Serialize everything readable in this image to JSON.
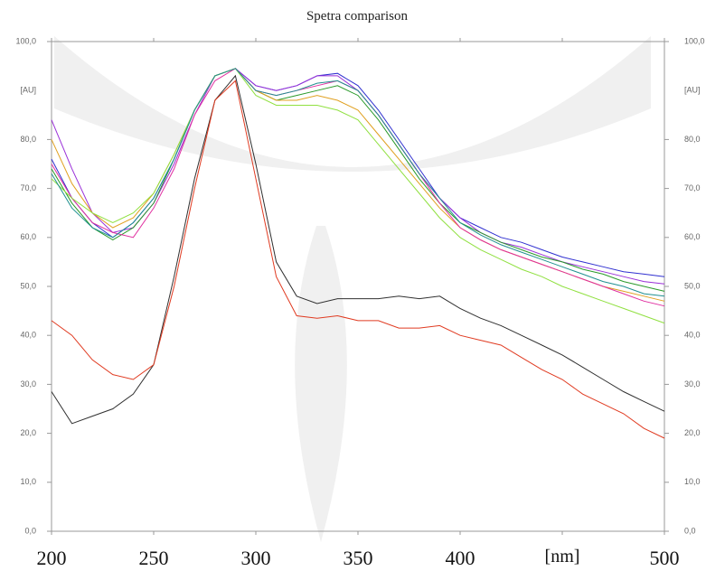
{
  "chart_data": {
    "type": "line",
    "title": "Spetra comparison",
    "y_label": "[AU]",
    "x_label": "[nm]",
    "x": [
      200,
      210,
      220,
      230,
      240,
      250,
      260,
      270,
      280,
      290,
      300,
      310,
      320,
      330,
      340,
      350,
      360,
      370,
      380,
      390,
      400,
      410,
      420,
      430,
      440,
      450,
      460,
      470,
      480,
      490,
      500
    ],
    "xlim": [
      200,
      500
    ],
    "xticks": [
      200,
      250,
      300,
      350,
      400,
      450,
      500
    ],
    "ylim": [
      0,
      100
    ],
    "yticks": [
      {
        "value": 0,
        "label": "0,0"
      },
      {
        "value": 10,
        "label": "10,0"
      },
      {
        "value": 20,
        "label": "20,0"
      },
      {
        "value": 30,
        "label": "30,0"
      },
      {
        "value": 40,
        "label": "40,0"
      },
      {
        "value": 50,
        "label": "50,0"
      },
      {
        "value": 60,
        "label": "60,0"
      },
      {
        "value": 70,
        "label": "70,0"
      },
      {
        "value": 80,
        "label": "80,0"
      },
      {
        "value": 100,
        "label": "100,0"
      }
    ],
    "series": [
      {
        "color": "#3030d0",
        "values": [
          76,
          68,
          63,
          60,
          63,
          68,
          76,
          86,
          93,
          94.5,
          91,
          90,
          91,
          93,
          93.5,
          91,
          86,
          80,
          74,
          68,
          64,
          62,
          60,
          59,
          57.5,
          56,
          55,
          54,
          53,
          52.5,
          52
        ]
      },
      {
        "color": "#9a30d8",
        "values": [
          84,
          74,
          65,
          61,
          62,
          67,
          75,
          85,
          93,
          94.5,
          91,
          90,
          91,
          93,
          93,
          90,
          85,
          79,
          73,
          68,
          64,
          61,
          59,
          58,
          56.5,
          55,
          54,
          53,
          52,
          51,
          50.5
        ]
      },
      {
        "color": "#2a9a2a",
        "values": [
          74,
          67,
          62,
          59.5,
          62,
          67,
          76,
          86,
          93,
          94.5,
          90,
          88,
          89,
          90,
          91,
          89,
          84,
          78,
          72,
          67,
          63,
          61,
          59,
          57.5,
          56,
          55,
          53.5,
          52.5,
          51,
          50,
          49
        ]
      },
      {
        "color": "#e0a020",
        "values": [
          80,
          71,
          65,
          62,
          64,
          69,
          77,
          86,
          93,
          94.5,
          90,
          88,
          88,
          89,
          88,
          86,
          81,
          76,
          71,
          66,
          62,
          59.5,
          57.5,
          56,
          54.5,
          53,
          51.5,
          50,
          49,
          48,
          47
        ]
      },
      {
        "color": "#e030a0",
        "values": [
          75,
          68,
          63,
          61,
          60,
          66,
          74,
          85,
          92,
          94.5,
          90,
          89,
          90,
          91,
          92,
          90,
          85,
          79,
          73,
          67,
          62,
          59.5,
          57.5,
          56,
          54.5,
          53,
          51.5,
          50,
          48.5,
          47,
          46
        ]
      },
      {
        "color": "#90e040",
        "values": [
          72,
          68,
          65,
          63,
          65,
          69,
          77,
          86,
          93,
          94.5,
          89,
          87,
          87,
          87,
          86,
          84,
          79,
          74,
          69,
          64,
          60,
          57.5,
          55.5,
          53.5,
          52,
          50,
          48.5,
          47,
          45.5,
          44,
          42.5
        ]
      },
      {
        "color": "#209090",
        "values": [
          73,
          66,
          62,
          60,
          63,
          68,
          76,
          86,
          93,
          94.5,
          90,
          89,
          90,
          91.5,
          92,
          90,
          85,
          79,
          73,
          68,
          63,
          60.5,
          58.5,
          57,
          55.5,
          54,
          52.5,
          51,
          50,
          48.5,
          48
        ]
      },
      {
        "color": "#303030",
        "values": [
          28.5,
          22,
          23.5,
          25,
          28,
          34,
          52,
          72,
          88,
          93,
          75,
          55,
          48,
          46.5,
          47.5,
          47.5,
          47.5,
          48,
          47.5,
          48,
          45.5,
          43.5,
          42,
          40,
          38,
          36,
          33.5,
          31,
          28.5,
          26.5,
          24.5
        ]
      },
      {
        "color": "#e03a20",
        "values": [
          43,
          40,
          35,
          32,
          31,
          34,
          50,
          70,
          88,
          92,
          72,
          52,
          44,
          43.5,
          44,
          43,
          43,
          41.5,
          41.5,
          42,
          40,
          39,
          38,
          35.5,
          33,
          31,
          28,
          26,
          24,
          21,
          19
        ]
      }
    ]
  }
}
